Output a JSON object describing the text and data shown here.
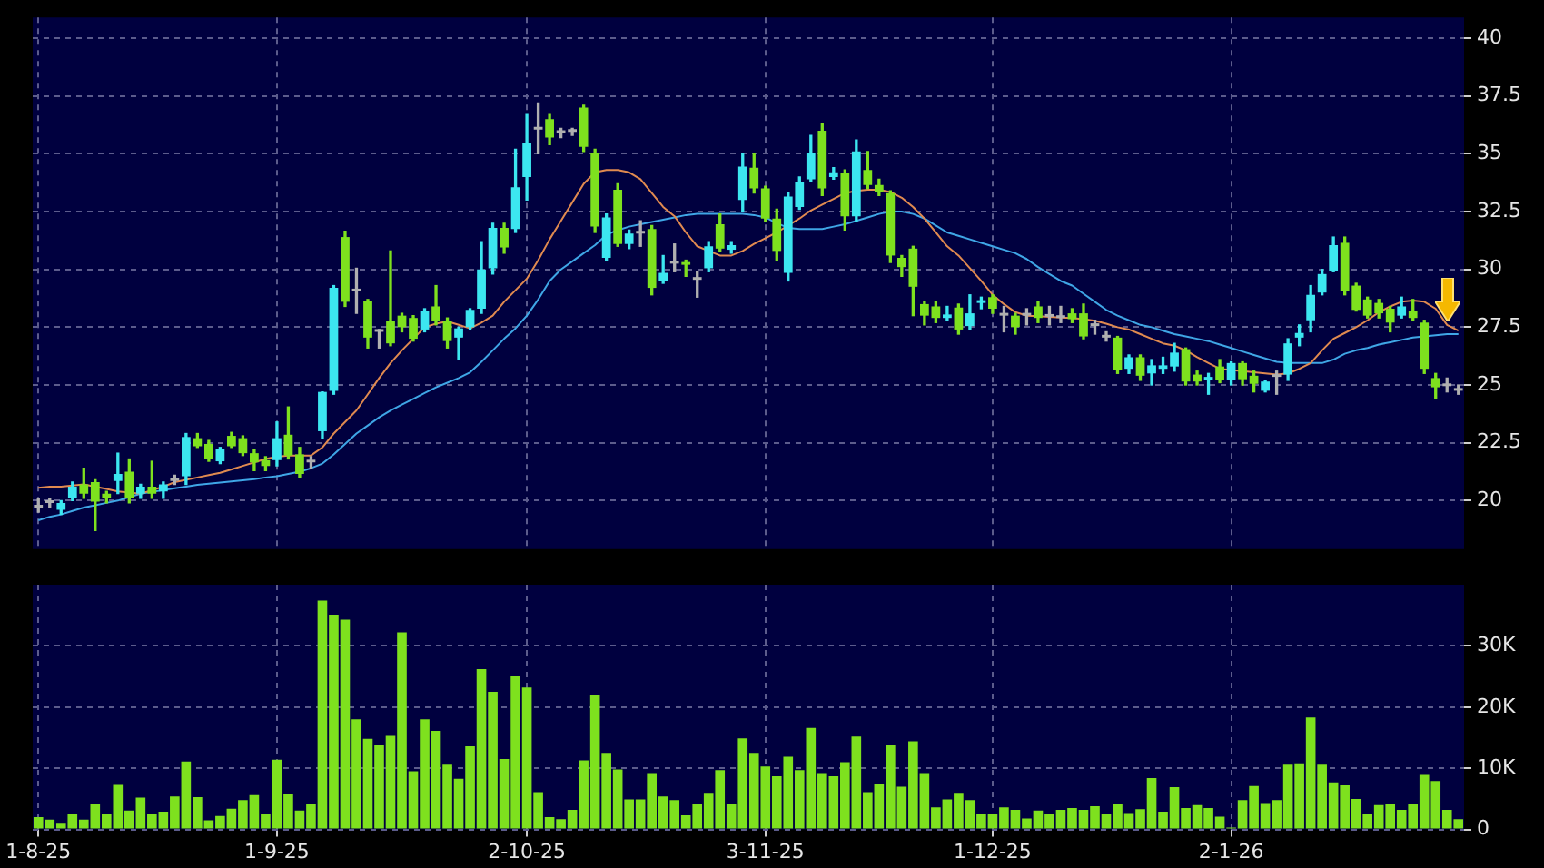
{
  "chart_data": [
    {
      "type": "candlestick",
      "categories": [
        null,
        null,
        null,
        null,
        null,
        null,
        null,
        null,
        null,
        null,
        null,
        null,
        null,
        null,
        null,
        null,
        null,
        null,
        null,
        null,
        null,
        null,
        null,
        null,
        null,
        null,
        null,
        null,
        null,
        null,
        null,
        null,
        null,
        null,
        null,
        null,
        null,
        null,
        null,
        null,
        null,
        null,
        null,
        null,
        null,
        null,
        null,
        null,
        null,
        null,
        null,
        null,
        null,
        null,
        null,
        null,
        null,
        null,
        null,
        null,
        null,
        null,
        null,
        null,
        null,
        null,
        null,
        null,
        null,
        null,
        null,
        null,
        null,
        null,
        null,
        null,
        null,
        null,
        null,
        null,
        null,
        null,
        null,
        null,
        null,
        null,
        null,
        null,
        null,
        null,
        null,
        null,
        null,
        null,
        null,
        null,
        null,
        null,
        null,
        null,
        null,
        null,
        null,
        null,
        null,
        null,
        null,
        null,
        null,
        null,
        null,
        null,
        null,
        null,
        null,
        null,
        null,
        null,
        null,
        null,
        null,
        null,
        null,
        null,
        null,
        null
      ],
      "ohlc": [
        [
          19.7,
          20.1,
          19.5,
          19.7
        ],
        [
          19.9,
          20.1,
          19.7,
          19.9
        ],
        [
          19.6,
          20.0,
          19.4,
          19.9
        ],
        [
          20.1,
          20.8,
          20.0,
          20.6
        ],
        [
          20.7,
          21.4,
          20.1,
          20.3
        ],
        [
          20.8,
          20.9,
          18.7,
          19.95
        ],
        [
          20.3,
          20.4,
          19.9,
          20.1
        ],
        [
          20.85,
          22.05,
          20.3,
          21.15
        ],
        [
          21.25,
          21.8,
          19.9,
          20.1
        ],
        [
          20.3,
          20.7,
          20.1,
          20.6
        ],
        [
          20.6,
          21.7,
          20.1,
          20.3
        ],
        [
          20.4,
          20.8,
          20.1,
          20.7
        ],
        [
          20.85,
          21.1,
          20.7,
          20.85
        ],
        [
          21.05,
          22.9,
          20.7,
          22.75
        ],
        [
          22.7,
          22.9,
          22.3,
          22.35
        ],
        [
          22.45,
          22.6,
          21.7,
          21.8
        ],
        [
          21.7,
          22.3,
          21.6,
          22.25
        ],
        [
          22.8,
          22.95,
          22.3,
          22.35
        ],
        [
          22.7,
          22.8,
          21.95,
          22.05
        ],
        [
          22.05,
          22.2,
          21.3,
          21.65
        ],
        [
          21.75,
          21.9,
          21.3,
          21.5
        ],
        [
          21.75,
          23.4,
          21.5,
          22.7
        ],
        [
          22.85,
          24.05,
          21.8,
          21.95
        ],
        [
          22.0,
          22.3,
          21.0,
          21.15
        ],
        [
          21.65,
          21.9,
          21.4,
          21.65
        ],
        [
          23.0,
          24.7,
          22.7,
          24.7
        ],
        [
          24.75,
          29.3,
          24.6,
          29.2
        ],
        [
          31.4,
          31.65,
          28.4,
          28.6
        ],
        [
          29.05,
          30.05,
          28.1,
          29.05
        ],
        [
          28.65,
          28.7,
          26.6,
          27.05
        ],
        [
          27.3,
          27.4,
          26.6,
          27.3
        ],
        [
          27.75,
          30.8,
          26.7,
          26.8
        ],
        [
          28.0,
          28.1,
          27.3,
          27.5
        ],
        [
          27.9,
          28.0,
          26.9,
          27.0
        ],
        [
          27.4,
          28.3,
          27.3,
          28.2
        ],
        [
          28.4,
          29.3,
          27.6,
          27.75
        ],
        [
          27.75,
          27.9,
          26.6,
          26.9
        ],
        [
          27.05,
          27.5,
          26.1,
          27.45
        ],
        [
          27.5,
          28.3,
          27.4,
          28.25
        ],
        [
          28.3,
          31.2,
          28.1,
          30.0
        ],
        [
          30.05,
          32.0,
          29.8,
          31.8
        ],
        [
          31.8,
          32.0,
          30.7,
          30.95
        ],
        [
          31.75,
          35.2,
          31.6,
          33.55
        ],
        [
          34.0,
          36.7,
          33.0,
          35.45
        ],
        [
          36.05,
          37.2,
          35.0,
          36.05
        ],
        [
          36.5,
          36.7,
          35.4,
          35.7
        ],
        [
          35.9,
          36.1,
          35.7,
          35.9
        ],
        [
          35.95,
          36.1,
          35.8,
          35.95
        ],
        [
          37.0,
          37.1,
          35.1,
          35.3
        ],
        [
          35.05,
          35.2,
          31.6,
          31.85
        ],
        [
          30.5,
          32.4,
          30.4,
          32.25
        ],
        [
          33.45,
          33.7,
          31.0,
          31.1
        ],
        [
          31.1,
          31.7,
          30.9,
          31.55
        ],
        [
          31.55,
          32.1,
          31.0,
          31.55
        ],
        [
          31.75,
          31.9,
          28.9,
          29.2
        ],
        [
          29.5,
          30.6,
          29.4,
          29.85
        ],
        [
          30.25,
          31.1,
          29.9,
          30.25
        ],
        [
          30.3,
          30.4,
          29.7,
          30.2
        ],
        [
          29.55,
          29.9,
          28.8,
          29.55
        ],
        [
          30.05,
          31.2,
          29.9,
          31.0
        ],
        [
          31.95,
          32.4,
          30.8,
          30.9
        ],
        [
          30.85,
          31.2,
          30.7,
          31.05
        ],
        [
          33.0,
          35.0,
          32.5,
          34.45
        ],
        [
          34.4,
          35.0,
          33.3,
          33.5
        ],
        [
          33.5,
          33.6,
          32.1,
          32.2
        ],
        [
          32.2,
          32.6,
          30.4,
          30.8
        ],
        [
          29.85,
          33.3,
          29.5,
          33.15
        ],
        [
          32.7,
          34.0,
          32.6,
          33.8
        ],
        [
          33.9,
          35.8,
          33.8,
          35.05
        ],
        [
          36.0,
          36.3,
          33.2,
          33.5
        ],
        [
          34.0,
          34.4,
          33.9,
          34.2
        ],
        [
          34.15,
          34.3,
          31.7,
          32.3
        ],
        [
          32.3,
          35.6,
          32.1,
          35.1
        ],
        [
          34.3,
          35.1,
          33.5,
          33.65
        ],
        [
          33.65,
          33.9,
          33.2,
          33.35
        ],
        [
          33.3,
          33.4,
          30.3,
          30.6
        ],
        [
          30.5,
          30.6,
          29.7,
          30.1
        ],
        [
          30.9,
          31.0,
          28.0,
          29.25
        ],
        [
          28.5,
          28.6,
          27.6,
          28.0
        ],
        [
          28.4,
          28.6,
          27.7,
          27.9
        ],
        [
          27.9,
          28.4,
          27.8,
          28.05
        ],
        [
          28.35,
          28.5,
          27.2,
          27.4
        ],
        [
          27.55,
          28.9,
          27.4,
          28.1
        ],
        [
          28.55,
          28.8,
          28.3,
          28.65
        ],
        [
          28.8,
          28.9,
          28.1,
          28.3
        ],
        [
          28.0,
          28.4,
          27.3,
          28.0
        ],
        [
          28.0,
          28.1,
          27.2,
          27.5
        ],
        [
          28.0,
          28.3,
          27.6,
          28.0
        ],
        [
          28.4,
          28.6,
          27.7,
          27.9
        ],
        [
          27.95,
          28.4,
          27.6,
          27.95
        ],
        [
          27.9,
          28.4,
          27.7,
          27.9
        ],
        [
          28.1,
          28.3,
          27.7,
          27.85
        ],
        [
          28.1,
          28.5,
          27.0,
          27.1
        ],
        [
          27.55,
          27.8,
          27.2,
          27.55
        ],
        [
          27.05,
          27.3,
          26.9,
          27.05
        ],
        [
          27.05,
          27.1,
          25.5,
          25.65
        ],
        [
          25.7,
          26.3,
          25.5,
          26.2
        ],
        [
          26.2,
          26.3,
          25.2,
          25.4
        ],
        [
          25.5,
          26.1,
          25.0,
          25.85
        ],
        [
          25.7,
          26.2,
          25.5,
          25.85
        ],
        [
          25.8,
          26.8,
          25.6,
          26.4
        ],
        [
          26.55,
          26.6,
          25.0,
          25.15
        ],
        [
          25.45,
          25.6,
          25.0,
          25.15
        ],
        [
          25.2,
          25.5,
          24.6,
          25.35
        ],
        [
          25.8,
          26.1,
          25.1,
          25.2
        ],
        [
          25.2,
          26.0,
          25.0,
          25.95
        ],
        [
          25.95,
          26.0,
          25.0,
          25.25
        ],
        [
          25.4,
          25.6,
          24.7,
          25.05
        ],
        [
          24.75,
          25.2,
          24.7,
          25.15
        ],
        [
          25.35,
          25.6,
          24.6,
          25.35
        ],
        [
          25.45,
          27.0,
          25.2,
          26.8
        ],
        [
          27.05,
          27.6,
          26.7,
          27.25
        ],
        [
          27.8,
          29.3,
          27.3,
          28.9
        ],
        [
          29.0,
          30.0,
          28.9,
          29.8
        ],
        [
          29.95,
          31.4,
          29.9,
          31.05
        ],
        [
          31.15,
          31.4,
          28.9,
          29.05
        ],
        [
          29.3,
          29.4,
          28.2,
          28.25
        ],
        [
          28.7,
          28.8,
          27.9,
          28.0
        ],
        [
          28.55,
          28.7,
          27.9,
          28.1
        ],
        [
          28.3,
          28.4,
          27.3,
          27.7
        ],
        [
          28.0,
          28.8,
          27.9,
          28.4
        ],
        [
          28.2,
          28.7,
          27.8,
          27.9
        ],
        [
          27.7,
          27.8,
          25.5,
          25.7
        ],
        [
          25.3,
          25.5,
          24.4,
          24.9
        ],
        [
          24.95,
          25.3,
          24.7,
          24.95
        ],
        [
          24.75,
          25.0,
          24.6,
          24.75
        ]
      ],
      "colors": [
        "#b0b0b0",
        "#b0b0b0",
        "#3ce6f0",
        "#3ce6f0",
        "#7ee11e",
        "#7ee11e",
        "#7ee11e",
        "#3ce6f0",
        "#7ee11e",
        "#3ce6f0",
        "#7ee11e",
        "#3ce6f0",
        "#b0b0b0",
        "#3ce6f0",
        "#7ee11e",
        "#7ee11e",
        "#3ce6f0",
        "#7ee11e",
        "#7ee11e",
        "#7ee11e",
        "#7ee11e",
        "#3ce6f0",
        "#7ee11e",
        "#7ee11e",
        "#b0b0b0",
        "#3ce6f0",
        "#3ce6f0",
        "#7ee11e",
        "#b0b0b0",
        "#7ee11e",
        "#b0b0b0",
        "#7ee11e",
        "#7ee11e",
        "#7ee11e",
        "#3ce6f0",
        "#7ee11e",
        "#7ee11e",
        "#3ce6f0",
        "#3ce6f0",
        "#3ce6f0",
        "#3ce6f0",
        "#7ee11e",
        "#3ce6f0",
        "#3ce6f0",
        "#b0b0b0",
        "#7ee11e",
        "#b0b0b0",
        "#b0b0b0",
        "#7ee11e",
        "#7ee11e",
        "#3ce6f0",
        "#7ee11e",
        "#3ce6f0",
        "#b0b0b0",
        "#7ee11e",
        "#3ce6f0",
        "#b0b0b0",
        "#7ee11e",
        "#b0b0b0",
        "#3ce6f0",
        "#7ee11e",
        "#3ce6f0",
        "#3ce6f0",
        "#7ee11e",
        "#7ee11e",
        "#7ee11e",
        "#3ce6f0",
        "#3ce6f0",
        "#3ce6f0",
        "#7ee11e",
        "#3ce6f0",
        "#7ee11e",
        "#3ce6f0",
        "#7ee11e",
        "#7ee11e",
        "#7ee11e",
        "#7ee11e",
        "#7ee11e",
        "#7ee11e",
        "#7ee11e",
        "#3ce6f0",
        "#7ee11e",
        "#3ce6f0",
        "#3ce6f0",
        "#7ee11e",
        "#b0b0b0",
        "#7ee11e",
        "#b0b0b0",
        "#7ee11e",
        "#b0b0b0",
        "#b0b0b0",
        "#7ee11e",
        "#7ee11e",
        "#b0b0b0",
        "#b0b0b0",
        "#7ee11e",
        "#3ce6f0",
        "#7ee11e",
        "#3ce6f0",
        "#3ce6f0",
        "#3ce6f0",
        "#7ee11e",
        "#7ee11e",
        "#3ce6f0",
        "#7ee11e",
        "#3ce6f0",
        "#7ee11e",
        "#7ee11e",
        "#3ce6f0",
        "#b0b0b0",
        "#3ce6f0",
        "#3ce6f0",
        "#3ce6f0",
        "#3ce6f0",
        "#3ce6f0",
        "#7ee11e",
        "#7ee11e",
        "#7ee11e",
        "#7ee11e",
        "#7ee11e",
        "#3ce6f0",
        "#7ee11e",
        "#7ee11e",
        "#7ee11e",
        "#b0b0b0",
        "#b0b0b0"
      ],
      "series": [
        {
          "type": "line",
          "color": "#e08a50",
          "values": [
            20.55,
            20.6,
            20.6,
            20.65,
            20.7,
            20.6,
            20.5,
            20.4,
            20.35,
            20.3,
            20.45,
            20.6,
            20.8,
            20.9,
            21.0,
            21.1,
            21.2,
            21.35,
            21.5,
            21.65,
            21.8,
            21.9,
            21.95,
            21.95,
            21.95,
            22.3,
            22.9,
            23.4,
            23.9,
            24.6,
            25.3,
            25.95,
            26.5,
            27.0,
            27.5,
            27.65,
            27.75,
            27.6,
            27.45,
            27.7,
            28.0,
            28.6,
            29.1,
            29.6,
            30.4,
            31.3,
            32.1,
            32.9,
            33.7,
            34.2,
            34.3,
            34.3,
            34.2,
            33.9,
            33.3,
            32.7,
            32.3,
            31.6,
            31.0,
            30.8,
            30.6,
            30.6,
            30.8,
            31.1,
            31.35,
            31.6,
            31.9,
            32.2,
            32.55,
            32.8,
            33.05,
            33.3,
            33.4,
            33.45,
            33.45,
            33.35,
            33.1,
            32.7,
            32.2,
            31.6,
            31.0,
            30.6,
            30.05,
            29.5,
            28.9,
            28.5,
            28.15,
            28.0,
            27.98,
            27.95,
            27.92,
            27.9,
            27.85,
            27.78,
            27.65,
            27.5,
            27.4,
            27.2,
            27.0,
            26.8,
            26.7,
            26.5,
            26.2,
            25.95,
            25.7,
            25.65,
            25.6,
            25.55,
            25.5,
            25.45,
            25.5,
            25.7,
            25.95,
            26.5,
            27.0,
            27.25,
            27.5,
            27.8,
            28.15,
            28.4,
            28.6,
            28.65,
            28.6,
            28.3,
            27.6,
            27.35
          ]
        },
        {
          "type": "line",
          "color": "#3fa6e6",
          "values": [
            19.15,
            19.3,
            19.4,
            19.55,
            19.7,
            19.8,
            19.9,
            20.0,
            20.15,
            20.3,
            20.38,
            20.45,
            20.53,
            20.6,
            20.68,
            20.73,
            20.78,
            20.83,
            20.88,
            20.93,
            21.0,
            21.05,
            21.15,
            21.25,
            21.4,
            21.6,
            22.0,
            22.45,
            22.9,
            23.25,
            23.6,
            23.9,
            24.15,
            24.4,
            24.65,
            24.9,
            25.1,
            25.3,
            25.55,
            26.0,
            26.5,
            27.0,
            27.45,
            28.0,
            28.7,
            29.5,
            30.0,
            30.35,
            30.7,
            31.05,
            31.5,
            31.7,
            31.85,
            31.95,
            32.05,
            32.15,
            32.25,
            32.35,
            32.4,
            32.4,
            32.4,
            32.4,
            32.4,
            32.35,
            32.25,
            32.0,
            31.8,
            31.75,
            31.75,
            31.75,
            31.85,
            31.95,
            32.1,
            32.25,
            32.4,
            32.5,
            32.5,
            32.4,
            32.2,
            31.9,
            31.6,
            31.45,
            31.3,
            31.15,
            31.0,
            30.85,
            30.7,
            30.45,
            30.1,
            29.8,
            29.5,
            29.3,
            28.95,
            28.6,
            28.25,
            28.0,
            27.8,
            27.6,
            27.5,
            27.35,
            27.2,
            27.1,
            27.0,
            26.9,
            26.75,
            26.6,
            26.45,
            26.3,
            26.15,
            26.0,
            25.95,
            25.95,
            25.95,
            25.95,
            26.1,
            26.35,
            26.5,
            26.6,
            26.75,
            26.85,
            26.95,
            27.05,
            27.1,
            27.15,
            27.2,
            27.2
          ]
        }
      ],
      "ylim": [
        17.9,
        40.9
      ],
      "yticks": [
        20,
        22.5,
        25,
        27.5,
        30,
        32.5,
        35,
        37.5,
        40
      ],
      "grid": true,
      "tick_labels": "y"
    },
    {
      "type": "bar",
      "categories": [
        "1-8-25",
        null,
        null,
        null,
        null,
        null,
        null,
        null,
        null,
        null,
        null,
        null,
        null,
        null,
        null,
        null,
        null,
        null,
        null,
        null,
        null,
        "1-9-25",
        null,
        null,
        null,
        null,
        null,
        null,
        null,
        null,
        null,
        null,
        null,
        null,
        null,
        null,
        null,
        null,
        null,
        null,
        null,
        null,
        null,
        "2-10-25",
        null,
        null,
        null,
        null,
        null,
        null,
        null,
        null,
        null,
        null,
        null,
        null,
        null,
        null,
        null,
        null,
        null,
        null,
        null,
        null,
        "3-11-25",
        null,
        null,
        null,
        null,
        null,
        null,
        null,
        null,
        null,
        null,
        null,
        null,
        null,
        null,
        null,
        null,
        null,
        null,
        null,
        "1-12-25",
        null,
        null,
        null,
        null,
        null,
        null,
        null,
        null,
        null,
        null,
        null,
        null,
        null,
        null,
        null,
        null,
        null,
        null,
        null,
        null,
        "2-1-26",
        null,
        null,
        null,
        null,
        null,
        null,
        null,
        null,
        null,
        null,
        null,
        null,
        null,
        null,
        null,
        null,
        null,
        null,
        null,
        null
      ],
      "values": [
        2.0,
        1.6,
        1.1,
        2.5,
        1.6,
        4.2,
        2.5,
        7.3,
        3.1,
        5.2,
        2.5,
        2.9,
        5.4,
        11.1,
        5.3,
        1.5,
        2.2,
        3.4,
        4.8,
        5.6,
        2.6,
        11.4,
        5.8,
        3.1,
        4.2,
        37.4,
        35.1,
        34.3,
        18.0,
        14.8,
        13.8,
        15.3,
        32.2,
        9.5,
        18.0,
        16.1,
        10.6,
        8.3,
        13.6,
        26.2,
        22.5,
        11.5,
        25.1,
        23.2,
        6.1,
        2.0,
        1.7,
        3.2,
        11.3,
        22.0,
        12.5,
        9.8,
        4.9,
        4.9,
        9.2,
        5.4,
        4.8,
        2.3,
        4.2,
        6.0,
        9.7,
        4.1,
        14.9,
        12.5,
        10.3,
        8.7,
        11.9,
        9.7,
        16.6,
        9.2,
        8.7,
        11.0,
        15.2,
        6.1,
        7.4,
        13.9,
        7.0,
        14.4,
        9.2,
        3.6,
        4.9,
        6.0,
        4.8,
        2.5,
        2.5,
        3.6,
        3.2,
        1.8,
        3.1,
        2.6,
        3.2,
        3.5,
        3.2,
        3.8,
        2.6,
        4.1,
        2.7,
        3.3,
        8.4,
        2.9,
        6.9,
        3.5,
        4.0,
        3.5,
        2.1,
        0.3,
        4.8,
        7.1,
        4.3,
        4.8,
        10.6,
        10.8,
        18.3,
        10.6,
        7.7,
        7.2,
        5.0,
        2.6,
        4.0,
        4.2,
        3.2,
        4.1,
        8.9,
        7.9,
        3.2,
        1.7
      ],
      "color": "#7ee11e",
      "ylim": [
        0,
        40
      ],
      "yticks": [
        0,
        {
          "value": 10,
          "label": "10K"
        },
        {
          "value": 20,
          "label": "20K"
        },
        {
          "value": 30,
          "label": "30K"
        }
      ],
      "grid": true
    }
  ]
}
